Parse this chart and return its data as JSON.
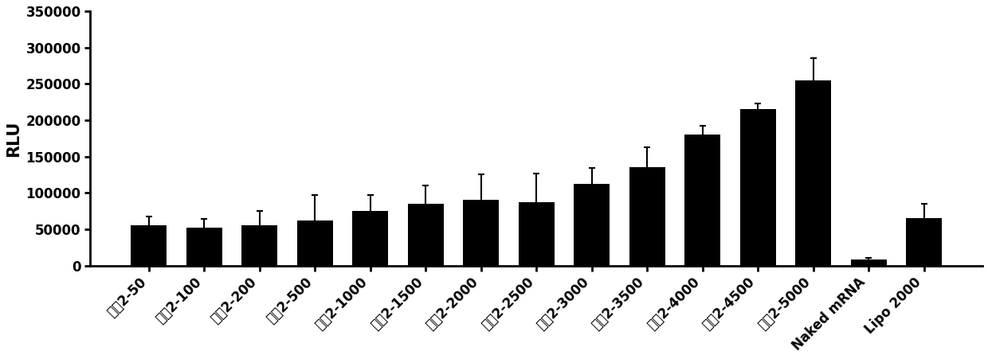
{
  "categories": [
    "处方2-50",
    "处方2-100",
    "处方2-200",
    "处方2-500",
    "处方2-1000",
    "处方2-1500",
    "处方2-2000",
    "处方2-2500",
    "处方2-3000",
    "处方2-3500",
    "处方2-4000",
    "处方2-4500",
    "处方2-5000",
    "Naked mRNA",
    "Lipo 2000"
  ],
  "values": [
    55000,
    52000,
    55000,
    62000,
    75000,
    85000,
    90000,
    87000,
    112000,
    135000,
    180000,
    215000,
    255000,
    8000,
    65000
  ],
  "errors": [
    13000,
    12000,
    20000,
    35000,
    22000,
    25000,
    35000,
    40000,
    22000,
    28000,
    12000,
    8000,
    30000,
    3000,
    20000
  ],
  "bar_color": "#000000",
  "ylabel": "RLU",
  "ylim": [
    0,
    350000
  ],
  "yticks": [
    0,
    50000,
    100000,
    150000,
    200000,
    250000,
    300000,
    350000
  ],
  "background_color": "#ffffff",
  "ylabel_fontsize": 15,
  "tick_fontsize": 12,
  "xlabel_rotation": 45,
  "bar_width": 0.65,
  "capsize": 3,
  "elinewidth": 1.5,
  "ecapthick": 1.5
}
